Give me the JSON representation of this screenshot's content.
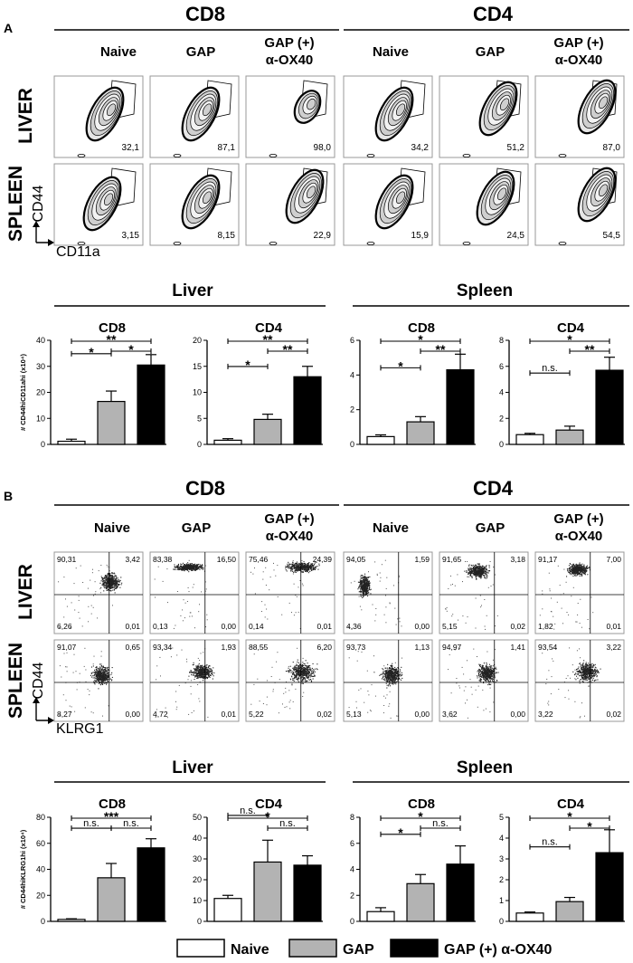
{
  "panels": [
    {
      "letter": "A",
      "groups": [
        "CD8",
        "CD4"
      ],
      "conditions": [
        "Naive",
        "GAP",
        "GAP (+)",
        "α-OX40"
      ],
      "tissues": [
        "LIVER",
        "SPLEEN"
      ],
      "y_axis_marker": "CD44",
      "x_axis_marker": "CD11a",
      "plot_type": "contour",
      "percentages": [
        [
          "32,1",
          "87,1",
          "98,0",
          "34,2",
          "51,2",
          "87,0"
        ],
        [
          "3,15",
          "8,15",
          "22,9",
          "15,9",
          "24,5",
          "54,5"
        ]
      ],
      "organs": [
        "Liver",
        "Spleen"
      ]
    },
    {
      "letter": "B",
      "groups": [
        "CD8",
        "CD4"
      ],
      "conditions": [
        "Naive",
        "GAP",
        "GAP (+)",
        "α-OX40"
      ],
      "tissues": [
        "LIVER",
        "SPLEEN"
      ],
      "y_axis_marker": "CD44",
      "x_axis_marker": "KLRG1",
      "plot_type": "dot",
      "quadrants": [
        [
          [
            "90,31",
            "3,42",
            "6,26",
            "0,01"
          ],
          [
            "83,38",
            "16,50",
            "0,13",
            "0,00"
          ],
          [
            "75,46",
            "24,39",
            "0,14",
            "0,01"
          ],
          [
            "94,05",
            "1,59",
            "4,36",
            "0,00"
          ],
          [
            "91,65",
            "3,18",
            "5,15",
            "0,02"
          ],
          [
            "91,17",
            "7,00",
            "1,82",
            "0,01"
          ]
        ],
        [
          [
            "91,07",
            "0,65",
            "8,27",
            "0,00"
          ],
          [
            "93,34",
            "1,93",
            "4,72",
            "0,01"
          ],
          [
            "88,55",
            "6,20",
            "5,22",
            "0,02"
          ],
          [
            "93,73",
            "1,13",
            "5,13",
            "0,00"
          ],
          [
            "94,97",
            "1,41",
            "3,62",
            "0,00"
          ],
          [
            "93,54",
            "3,22",
            "3,22",
            "0,02"
          ]
        ]
      ],
      "organs": [
        "Liver",
        "Spleen"
      ]
    }
  ],
  "legend": [
    {
      "label": "Naive",
      "color": "#ffffff"
    },
    {
      "label": "GAP",
      "color": "#b3b3b3"
    },
    {
      "label": "GAP (+) α-OX40",
      "color": "#000000"
    }
  ],
  "chart_data": [
    {
      "type": "bar",
      "panel": "A",
      "organ": "Liver",
      "subset": "CD8",
      "ylabel": "# CD44hiCD11ahi (x10⁴)",
      "ylim": [
        0,
        40
      ],
      "yticks": [
        0,
        10,
        20,
        30,
        40
      ],
      "categories": [
        "Naive",
        "GAP",
        "GAP (+) α-OX40"
      ],
      "values": [
        1.2,
        16.5,
        30.5
      ],
      "errors": [
        0.8,
        4.0,
        4.0
      ],
      "brackets": [
        {
          "from": 1,
          "to": 2,
          "label": "*",
          "level": 0
        },
        {
          "from": 0,
          "to": 2,
          "label": "**",
          "level": 1
        },
        {
          "from": 0,
          "to": 1,
          "label": "*",
          "level": 2
        }
      ]
    },
    {
      "type": "bar",
      "panel": "A",
      "organ": "Liver",
      "subset": "CD4",
      "ylim": [
        0,
        20
      ],
      "yticks": [
        0,
        5,
        10,
        15,
        20
      ],
      "categories": [
        "Naive",
        "GAP",
        "GAP (+) α-OX40"
      ],
      "values": [
        0.8,
        4.8,
        13.0
      ],
      "errors": [
        0.3,
        1.0,
        2.0
      ],
      "brackets": [
        {
          "from": 1,
          "to": 2,
          "label": "**",
          "level": 0
        },
        {
          "from": 0,
          "to": 2,
          "label": "**",
          "level": 1
        },
        {
          "from": 0,
          "to": 1,
          "label": "*",
          "level": 2
        }
      ]
    },
    {
      "type": "bar",
      "panel": "A",
      "organ": "Spleen",
      "subset": "CD8",
      "ylim": [
        0,
        6
      ],
      "yticks": [
        0,
        2,
        4,
        6
      ],
      "categories": [
        "Naive",
        "GAP",
        "GAP (+) α-OX40"
      ],
      "values": [
        0.45,
        1.3,
        4.3
      ],
      "errors": [
        0.1,
        0.3,
        0.9
      ],
      "brackets": [
        {
          "from": 1,
          "to": 2,
          "label": "**",
          "level": 0
        },
        {
          "from": 0,
          "to": 2,
          "label": "*",
          "level": 1
        },
        {
          "from": 0,
          "to": 1,
          "label": "*",
          "level": 2
        }
      ]
    },
    {
      "type": "bar",
      "panel": "A",
      "organ": "Spleen",
      "subset": "CD4",
      "ylim": [
        0,
        8
      ],
      "yticks": [
        0,
        2,
        4,
        6,
        8
      ],
      "categories": [
        "Naive",
        "GAP",
        "GAP (+) α-OX40"
      ],
      "values": [
        0.75,
        1.1,
        5.7
      ],
      "errors": [
        0.1,
        0.3,
        1.0
      ],
      "brackets": [
        {
          "from": 1,
          "to": 2,
          "label": "**",
          "level": 0
        },
        {
          "from": 0,
          "to": 2,
          "label": "*",
          "level": 1
        },
        {
          "from": 0,
          "to": 1,
          "label": "n.s.",
          "level": 2
        }
      ]
    },
    {
      "type": "bar",
      "panel": "B",
      "organ": "Liver",
      "subset": "CD8",
      "ylabel": "# CD44hiKLRG1hi (x10⁴)",
      "ylim": [
        0,
        80
      ],
      "yticks": [
        0,
        20,
        40,
        60,
        80
      ],
      "categories": [
        "Naive",
        "GAP",
        "GAP (+) α-OX40"
      ],
      "values": [
        1.5,
        33.5,
        56.5
      ],
      "errors": [
        0.5,
        11.0,
        7.0
      ],
      "brackets": [
        {
          "from": 1,
          "to": 2,
          "label": "n.s.",
          "level": 0
        },
        {
          "from": 0,
          "to": 2,
          "label": "***",
          "level": 1
        },
        {
          "from": 0,
          "to": 1,
          "label": "n.s.",
          "level": 2
        }
      ]
    },
    {
      "type": "bar",
      "panel": "B",
      "organ": "Liver",
      "subset": "CD4",
      "ylim": [
        0,
        50
      ],
      "yticks": [
        0,
        10,
        20,
        30,
        40,
        50
      ],
      "categories": [
        "Naive",
        "GAP",
        "GAP (+) α-OX40"
      ],
      "values": [
        11.0,
        28.5,
        27.0
      ],
      "errors": [
        1.5,
        10.5,
        4.5
      ],
      "brackets": [
        {
          "from": 1,
          "to": 2,
          "label": "n.s.",
          "level": 0
        },
        {
          "from": 0,
          "to": 2,
          "label": "*",
          "level": 1
        },
        {
          "from": 0,
          "to": 1,
          "label": "n.s.",
          "level": 2
        }
      ]
    },
    {
      "type": "bar",
      "panel": "B",
      "organ": "Spleen",
      "subset": "CD8",
      "ylim": [
        0,
        8
      ],
      "yticks": [
        0,
        2,
        4,
        6,
        8
      ],
      "categories": [
        "Naive",
        "GAP",
        "GAP (+) α-OX40"
      ],
      "values": [
        0.75,
        2.9,
        4.4
      ],
      "errors": [
        0.3,
        0.7,
        1.4
      ],
      "brackets": [
        {
          "from": 1,
          "to": 2,
          "label": "n.s.",
          "level": 0
        },
        {
          "from": 0,
          "to": 2,
          "label": "*",
          "level": 1
        },
        {
          "from": 0,
          "to": 1,
          "label": "*",
          "level": 2
        }
      ]
    },
    {
      "type": "bar",
      "panel": "B",
      "organ": "Spleen",
      "subset": "CD4",
      "ylim": [
        0,
        5
      ],
      "yticks": [
        0,
        1,
        2,
        3,
        4,
        5
      ],
      "categories": [
        "Naive",
        "GAP",
        "GAP (+) α-OX40"
      ],
      "values": [
        0.4,
        0.95,
        3.3
      ],
      "errors": [
        0.05,
        0.2,
        1.1
      ],
      "brackets": [
        {
          "from": 1,
          "to": 2,
          "label": "*",
          "level": 0
        },
        {
          "from": 0,
          "to": 2,
          "label": "*",
          "level": 1
        },
        {
          "from": 0,
          "to": 1,
          "label": "n.s.",
          "level": 2
        }
      ]
    }
  ]
}
